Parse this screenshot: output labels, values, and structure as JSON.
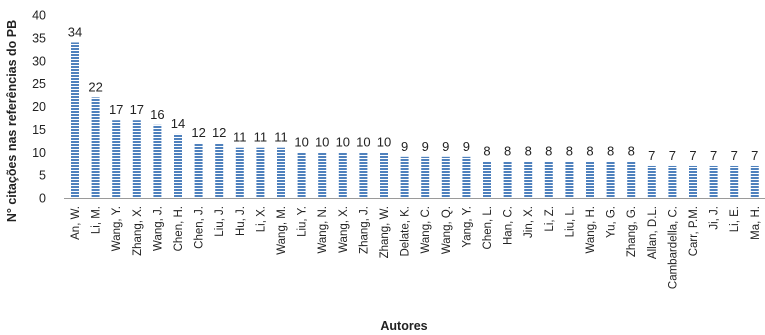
{
  "chart_data": {
    "type": "bar",
    "xlabel": "Autores",
    "ylabel": "N° citações nas referências do PB",
    "ylim": [
      0,
      40
    ],
    "yticks": [
      0,
      5,
      10,
      15,
      20,
      25,
      30,
      35,
      40
    ],
    "grid": false,
    "legend": "none",
    "bar_color": "#4f81bd",
    "bar_stripe_color": "#ffffff",
    "categories": [
      "An, W.",
      "Li, M.",
      "Wang, Y.",
      "Zhang, X.",
      "Wang, J.",
      "Chen, H.",
      "Chen, J.",
      "Liu, J.",
      "Hu, J.",
      "Li, X.",
      "Wang, M.",
      "Liu, Y.",
      "Wang, N.",
      "Wang, X.",
      "Zhang, J.",
      "Zhang, W.",
      "Delate, K.",
      "Wang, C.",
      "Wang, Q.",
      "Yang, Y.",
      "Chen, L.",
      "Han, C.",
      "Jin, X.",
      "Li, Z.",
      "Liu, L.",
      "Wang, H.",
      "Yu, G.",
      "Zhang, G.",
      "Allan, D.L.",
      "Cambardella, C.",
      "Carr, P.M.",
      "Ji, J.",
      "Li, E.",
      "Ma, H."
    ],
    "values": [
      34,
      22,
      17,
      17,
      16,
      14,
      12,
      12,
      11,
      11,
      11,
      10,
      10,
      10,
      10,
      10,
      9,
      9,
      9,
      9,
      8,
      8,
      8,
      8,
      8,
      8,
      8,
      8,
      7,
      7,
      7,
      7,
      7,
      7
    ]
  }
}
